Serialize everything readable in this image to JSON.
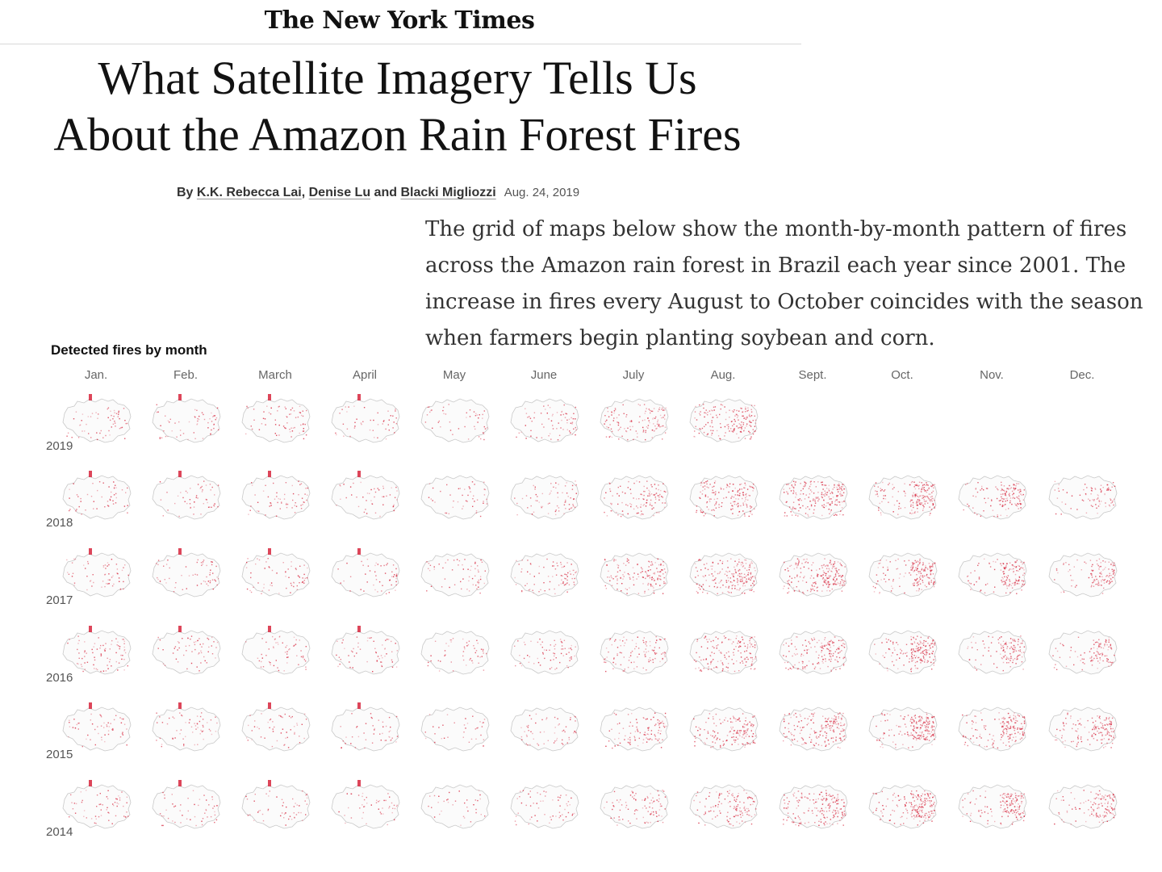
{
  "masthead": "The New York Times",
  "headline": {
    "line1": "What Satellite Imagery Tells Us",
    "line2": "About the Amazon Rain Forest Fires"
  },
  "byline": {
    "prefix": "By ",
    "author1": "K.K. Rebecca Lai",
    "sep1": ", ",
    "author2": "Denise Lu",
    "sep2": " and ",
    "author3": "Blacki Migliozzi",
    "date": "Aug. 24, 2019"
  },
  "summary": "The grid of maps below show the month-by-month pattern of fires across the Amazon rain forest in Brazil each year since 2001. The increase in fires every August to October coincides with the season when farmers begin planting soybean and corn.",
  "colors": {
    "fire": "#d7263d",
    "outline": "#c9c9c9"
  },
  "chart_data": {
    "type": "heatmap",
    "title": "Detected fires by month",
    "months": [
      "Jan.",
      "Feb.",
      "March",
      "April",
      "May",
      "June",
      "July",
      "Aug.",
      "Sept.",
      "Oct.",
      "Nov.",
      "Dec."
    ],
    "years": [
      "2019",
      "2018",
      "2017",
      "2016",
      "2015",
      "2014"
    ],
    "fire_intensity": [
      [
        0.25,
        0.25,
        0.3,
        0.2,
        0.2,
        0.3,
        0.55,
        0.75,
        null,
        null,
        null,
        null
      ],
      [
        0.22,
        0.22,
        0.25,
        0.2,
        0.2,
        0.3,
        0.5,
        0.7,
        0.9,
        0.8,
        0.6,
        0.35
      ],
      [
        0.25,
        0.25,
        0.28,
        0.22,
        0.25,
        0.35,
        0.6,
        0.85,
        0.9,
        0.75,
        0.6,
        0.5
      ],
      [
        0.35,
        0.25,
        0.25,
        0.25,
        0.22,
        0.3,
        0.45,
        0.65,
        0.7,
        0.75,
        0.55,
        0.45
      ],
      [
        0.25,
        0.25,
        0.22,
        0.2,
        0.15,
        0.25,
        0.45,
        0.65,
        0.8,
        0.85,
        0.7,
        0.65
      ],
      [
        0.25,
        0.22,
        0.22,
        0.2,
        0.15,
        0.25,
        0.4,
        0.55,
        0.8,
        0.85,
        0.65,
        0.55
      ]
    ]
  }
}
